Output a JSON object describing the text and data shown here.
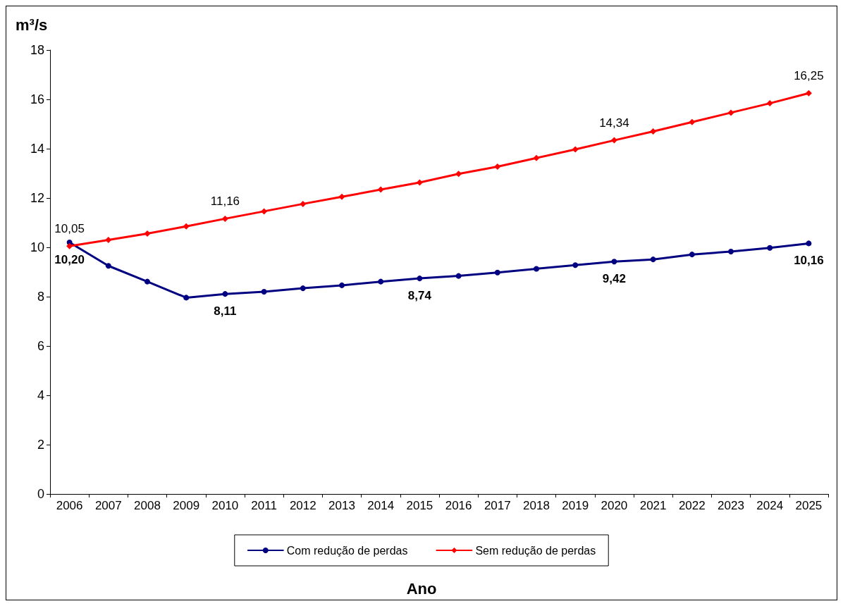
{
  "chart_data": {
    "type": "line",
    "ylabel": "m³/s",
    "xlabel": "Ano",
    "categories": [
      "2006",
      "2007",
      "2008",
      "2009",
      "2010",
      "2011",
      "2012",
      "2013",
      "2014",
      "2015",
      "2016",
      "2017",
      "2018",
      "2019",
      "2020",
      "2021",
      "2022",
      "2023",
      "2024",
      "2025"
    ],
    "series": [
      {
        "name": "Com redução de perdas",
        "color": "#000080",
        "marker": "circle",
        "values": [
          10.2,
          9.25,
          8.61,
          7.96,
          8.11,
          8.2,
          8.34,
          8.46,
          8.61,
          8.74,
          8.84,
          8.98,
          9.13,
          9.28,
          9.42,
          9.51,
          9.71,
          9.83,
          9.98,
          10.16
        ],
        "value_labels": [
          "10,20",
          null,
          null,
          null,
          "8,11",
          null,
          null,
          null,
          null,
          "8,74",
          null,
          null,
          null,
          null,
          "9,42",
          null,
          null,
          null,
          null,
          "10,16"
        ]
      },
      {
        "name": "Sem redução de perdas",
        "color": "#ff0000",
        "marker": "diamond",
        "values": [
          10.05,
          10.3,
          10.56,
          10.85,
          11.16,
          11.46,
          11.76,
          12.05,
          12.34,
          12.63,
          12.98,
          13.27,
          13.62,
          13.97,
          14.34,
          14.7,
          15.08,
          15.46,
          15.84,
          16.25
        ],
        "value_labels": [
          "10,05",
          null,
          null,
          null,
          "11,16",
          null,
          null,
          null,
          null,
          null,
          null,
          null,
          null,
          null,
          "14,34",
          null,
          null,
          null,
          null,
          "16,25"
        ]
      }
    ],
    "ylim": [
      0,
      18
    ],
    "yticks": [
      0,
      2,
      4,
      6,
      8,
      10,
      12,
      14,
      16,
      18
    ],
    "grid": false,
    "legend": "bottom",
    "line_style": "solid"
  }
}
